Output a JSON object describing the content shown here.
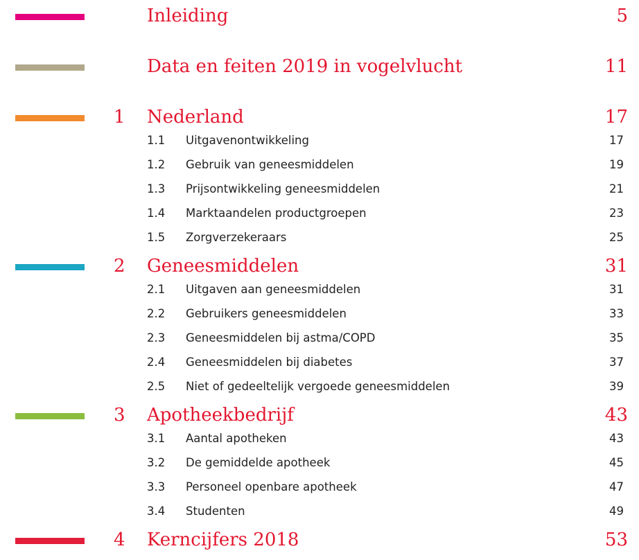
{
  "sections": [
    {
      "title": "Inleiding",
      "page": "5",
      "color": "#e5007e",
      "subsections": []
    },
    {
      "title": "Data en feiten 2019 in vogelvlucht",
      "page": "11",
      "color": "#b1a78b",
      "subsections": []
    },
    {
      "number": "1",
      "title": "Nederland",
      "page": "17",
      "color": "#f28a2e",
      "subsections": [
        {
          "number": "1.1",
          "title": "Uitgavenontwikkeling",
          "page": "17"
        },
        {
          "number": "1.2",
          "title": "Gebruik van geneesmiddelen",
          "page": "19"
        },
        {
          "number": "1.3",
          "title": "Prijsontwikkeling geneesmiddelen",
          "page": "21"
        },
        {
          "number": "1.4",
          "title": "Marktaandelen productgroepen",
          "page": "23"
        },
        {
          "number": "1.5",
          "title": "Zorgverzekeraars",
          "page": "25"
        }
      ]
    },
    {
      "number": "2",
      "title": "Geneesmiddelen",
      "page": "31",
      "color": "#1ba7c4",
      "subsections": [
        {
          "number": "2.1",
          "title": "Uitgaven aan geneesmiddelen",
          "page": "31"
        },
        {
          "number": "2.2",
          "title": "Gebruikers geneesmiddelen",
          "page": "33"
        },
        {
          "number": "2.3",
          "title": "Geneesmiddelen bij astma/COPD",
          "page": "35"
        },
        {
          "number": "2.4",
          "title": "Geneesmiddelen bij diabetes",
          "page": "37"
        },
        {
          "number": "2.5",
          "title": "Niet of gedeeltelijk vergoede geneesmiddelen",
          "page": "39"
        }
      ]
    },
    {
      "number": "3",
      "title": "Apotheekbedrijf",
      "page": "43",
      "color": "#8cbd3f",
      "subsections": [
        {
          "number": "3.1",
          "title": "Aantal apotheken",
          "page": "43"
        },
        {
          "number": "3.2",
          "title": "De gemiddelde apotheek",
          "page": "45"
        },
        {
          "number": "3.3",
          "title": "Personeel openbare apotheek",
          "page": "47"
        },
        {
          "number": "3.4",
          "title": "Studenten",
          "page": "49"
        }
      ]
    },
    {
      "number": "4",
      "title": "Kerncijfers 2018",
      "page": "53",
      "color": "#e31e3a",
      "subsections": []
    }
  ]
}
